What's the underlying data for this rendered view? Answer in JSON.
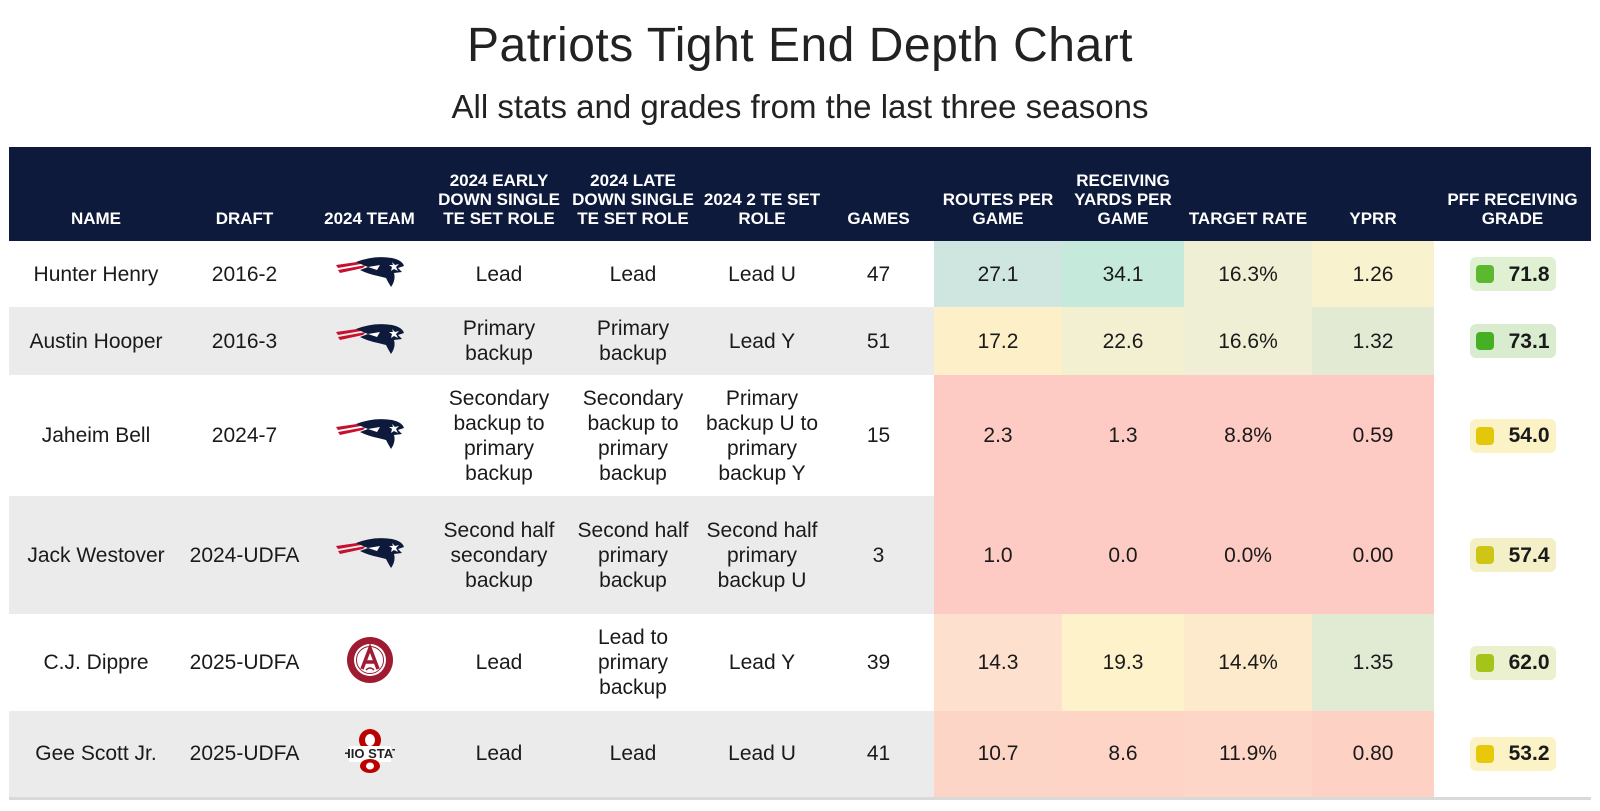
{
  "title": "Patriots Tight End Depth Chart",
  "subtitle": "All stats and grades from the last three seasons",
  "columns": {
    "name": "NAME",
    "draft": "DRAFT",
    "team": "2024 TEAM",
    "early": "2024 EARLY DOWN SINGLE TE SET ROLE",
    "late": "2024 LATE DOWN SINGLE TE SET ROLE",
    "two_te": "2024 2 TE SET ROLE",
    "games": "GAMES",
    "routes": "ROUTES PER GAME",
    "yards": "RECEIVING YARDS PER GAME",
    "target": "TARGET RATE",
    "yprr": "YPRR",
    "grade": "PFF RECEIVING GRADE"
  },
  "rows": [
    {
      "name": "Hunter Henry",
      "draft": "2016-2",
      "team_icon": "patriots-logo-icon",
      "early": "Lead",
      "late": "Lead",
      "two_te": "Lead U",
      "games": "47",
      "routes": "27.1",
      "yards": "34.1",
      "target": "16.3%",
      "yprr": "1.26",
      "grade": "71.8",
      "routes_color": "#cfe6e0",
      "yards_color": "#c5eadc",
      "target_color": "#efefd6",
      "yprr_color": "#f8f2cf",
      "grade_dot": "#5cb82e",
      "grade_bg": "#dff0d3"
    },
    {
      "name": "Austin Hooper",
      "draft": "2016-3",
      "team_icon": "patriots-logo-icon",
      "early": "Primary backup",
      "late": "Primary backup",
      "two_te": "Lead Y",
      "games": "51",
      "routes": "17.2",
      "yards": "22.6",
      "target": "16.6%",
      "yprr": "1.32",
      "grade": "73.1",
      "routes_color": "#fdf0c9",
      "yards_color": "#f3efd1",
      "target_color": "#efefd6",
      "yprr_color": "#e2ead3",
      "grade_dot": "#45b023",
      "grade_bg": "#d9ecd0"
    },
    {
      "name": "Jaheim Bell",
      "draft": "2024-7",
      "team_icon": "patriots-logo-icon",
      "early": "Secondary backup to primary backup",
      "late": "Secondary backup to primary backup",
      "two_te": "Primary backup U to primary backup Y",
      "games": "15",
      "routes": "2.3",
      "yards": "1.3",
      "target": "8.8%",
      "yprr": "0.59",
      "grade": "54.0",
      "routes_color": "#fdcbc3",
      "yards_color": "#fdcbc3",
      "target_color": "#fdcbc3",
      "yprr_color": "#fdcbc3",
      "grade_dot": "#e3c70b",
      "grade_bg": "#fbf3c6"
    },
    {
      "name": "Jack Westover",
      "draft": "2024-UDFA",
      "team_icon": "patriots-logo-icon",
      "early": "Second half secondary backup",
      "late": "Second half primary backup",
      "two_te": "Second half primary backup U",
      "games": "3",
      "routes": "1.0",
      "yards": "0.0",
      "target": "0.0%",
      "yprr": "0.00",
      "grade": "57.4",
      "routes_color": "#fdcbc3",
      "yards_color": "#fdcbc3",
      "target_color": "#fdcbc3",
      "yprr_color": "#fdcbc3",
      "grade_dot": "#cfc514",
      "grade_bg": "#f3f0c8"
    },
    {
      "name": "C.J. Dippre",
      "draft": "2025-UDFA",
      "team_icon": "alabama-logo-icon",
      "early": "Lead",
      "late": "Lead to primary backup",
      "two_te": "Lead Y",
      "games": "39",
      "routes": "14.3",
      "yards": "19.3",
      "target": "14.4%",
      "yprr": "1.35",
      "grade": "62.0",
      "routes_color": "#fde0cd",
      "yards_color": "#fdf2c9",
      "target_color": "#fde9cb",
      "yprr_color": "#e1ead2",
      "grade_dot": "#a5c419",
      "grade_bg": "#ebf0cf"
    },
    {
      "name": "Gee Scott Jr.",
      "draft": "2025-UDFA",
      "team_icon": "ohio-state-logo-icon",
      "early": "Lead",
      "late": "Lead",
      "two_te": "Lead U",
      "games": "41",
      "routes": "10.7",
      "yards": "8.6",
      "target": "11.9%",
      "yprr": "0.80",
      "grade": "53.2",
      "routes_color": "#fdd5c7",
      "yards_color": "#fdd4c6",
      "target_color": "#fdd6c8",
      "yprr_color": "#fdd2c5",
      "grade_dot": "#e8c80a",
      "grade_bg": "#fbf3c6"
    }
  ]
}
